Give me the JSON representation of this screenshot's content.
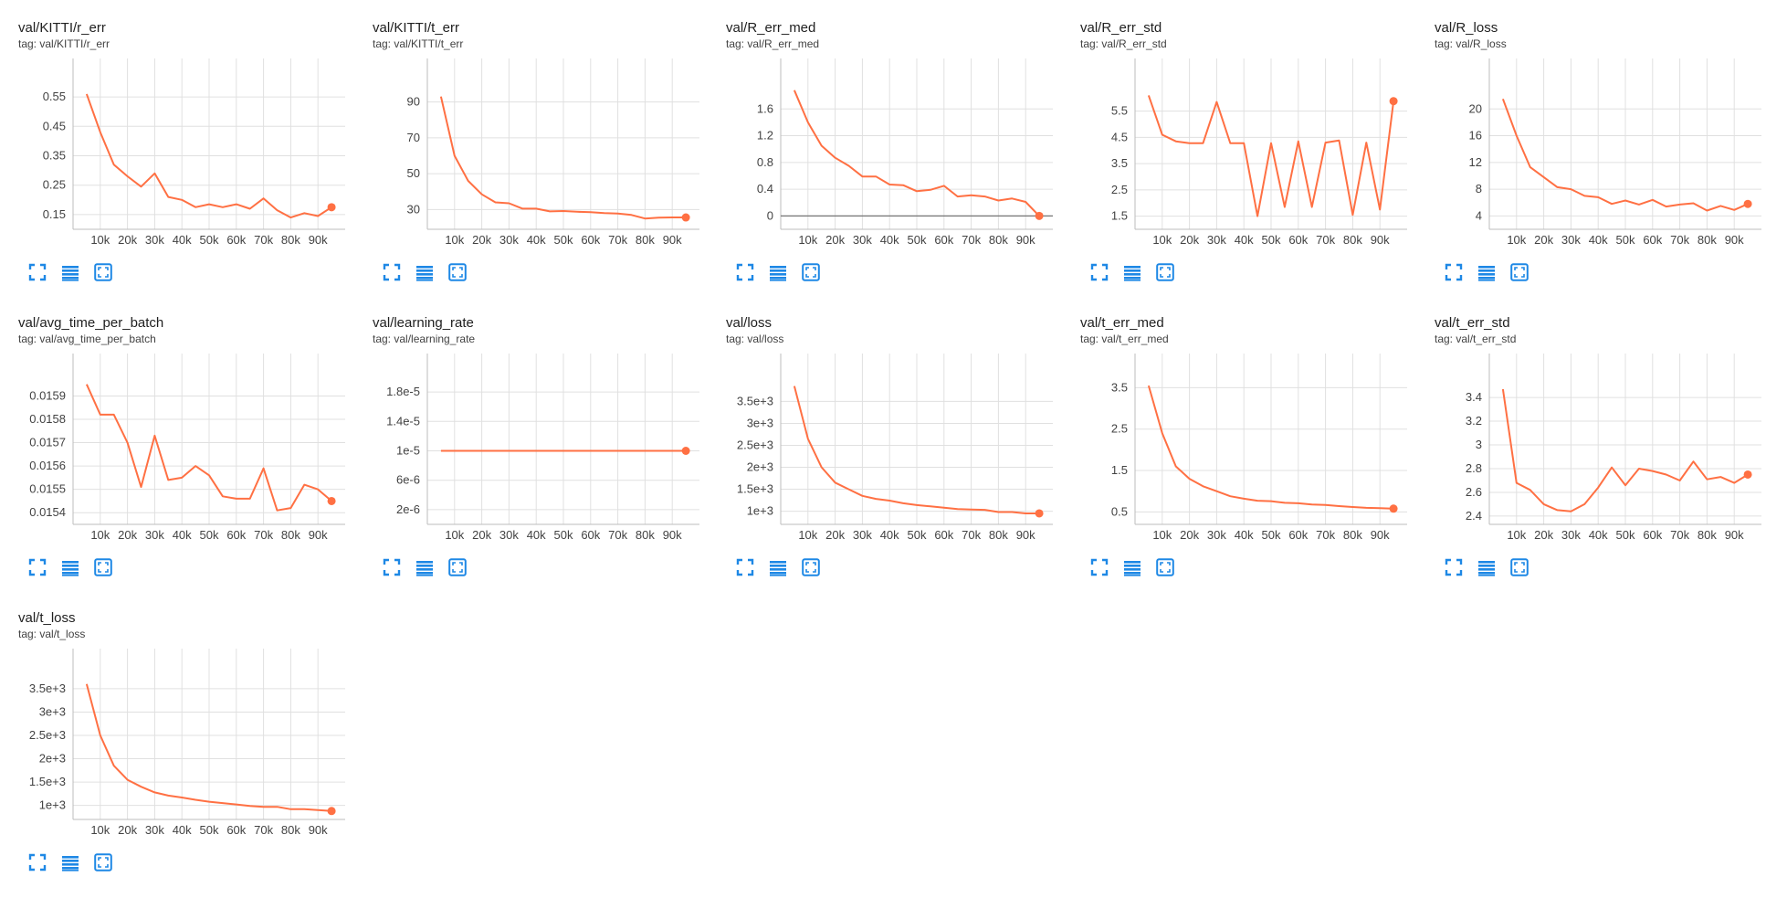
{
  "colors": {
    "line": "#ff7043",
    "grid": "#e0e0e0",
    "axis": "#bdbdbd",
    "zero_line": "#757575",
    "icon": "#1e88e5"
  },
  "toolbar_icons": [
    "fullscreen-icon",
    "toggle-log-scale-icon",
    "fit-domain-icon"
  ],
  "chart_data": [
    {
      "type": "line",
      "title": "val/KITTI/r_err",
      "tag": "tag: val/KITTI/r_err",
      "x": [
        5000,
        10000,
        15000,
        20000,
        25000,
        30000,
        35000,
        40000,
        45000,
        50000,
        55000,
        60000,
        65000,
        70000,
        75000,
        80000,
        85000,
        90000,
        95000
      ],
      "y": [
        0.56,
        0.43,
        0.32,
        0.28,
        0.245,
        0.29,
        0.21,
        0.2,
        0.175,
        0.185,
        0.175,
        0.185,
        0.17,
        0.205,
        0.165,
        0.14,
        0.155,
        0.145,
        0.175
      ],
      "xticks": [
        "10k",
        "20k",
        "30k",
        "40k",
        "50k",
        "60k",
        "70k",
        "80k",
        "90k"
      ],
      "xtick_values": [
        10000,
        20000,
        30000,
        40000,
        50000,
        60000,
        70000,
        80000,
        90000
      ],
      "yticks": [
        "0.15",
        "0.25",
        "0.35",
        "0.45",
        "0.55"
      ],
      "ytick_values": [
        0.15,
        0.25,
        0.35,
        0.45,
        0.55
      ],
      "xlim": [
        0,
        100000
      ],
      "ylim": [
        0.1,
        0.6
      ],
      "grid": true,
      "zero_line": false
    },
    {
      "type": "line",
      "title": "val/KITTI/t_err",
      "tag": "tag: val/KITTI/t_err",
      "x": [
        5000,
        10000,
        15000,
        20000,
        25000,
        30000,
        35000,
        40000,
        45000,
        50000,
        55000,
        60000,
        65000,
        70000,
        75000,
        80000,
        85000,
        90000,
        95000
      ],
      "y": [
        93,
        60,
        46,
        38.5,
        34,
        33.5,
        30.5,
        30.5,
        29,
        29.2,
        28.8,
        28.5,
        28,
        27.8,
        27,
        25,
        25.5,
        25.6,
        25.6
      ],
      "xticks": [
        "10k",
        "20k",
        "30k",
        "40k",
        "50k",
        "60k",
        "70k",
        "80k",
        "90k"
      ],
      "xtick_values": [
        10000,
        20000,
        30000,
        40000,
        50000,
        60000,
        70000,
        80000,
        90000
      ],
      "yticks": [
        "30",
        "50",
        "70",
        "90"
      ],
      "ytick_values": [
        30,
        50,
        70,
        90
      ],
      "xlim": [
        0,
        100000
      ],
      "ylim": [
        19,
        101
      ],
      "grid": true,
      "zero_line": false
    },
    {
      "type": "line",
      "title": "val/R_err_med",
      "tag": "tag: val/R_err_med",
      "x": [
        5000,
        10000,
        15000,
        20000,
        25000,
        30000,
        35000,
        40000,
        45000,
        50000,
        55000,
        60000,
        65000,
        70000,
        75000,
        80000,
        85000,
        90000,
        95000
      ],
      "y": [
        1.88,
        1.4,
        1.05,
        0.87,
        0.75,
        0.59,
        0.59,
        0.47,
        0.46,
        0.37,
        0.39,
        0.45,
        0.29,
        0.31,
        0.29,
        0.23,
        0.26,
        0.21,
        0.0
      ],
      "xticks": [
        "10k",
        "20k",
        "30k",
        "40k",
        "50k",
        "60k",
        "70k",
        "80k",
        "90k"
      ],
      "xtick_values": [
        10000,
        20000,
        30000,
        40000,
        50000,
        60000,
        70000,
        80000,
        90000
      ],
      "yticks": [
        "0",
        "0.4",
        "0.8",
        "1.2",
        "1.6"
      ],
      "ytick_values": [
        0,
        0.4,
        0.8,
        1.2,
        1.6
      ],
      "xlim": [
        0,
        100000
      ],
      "ylim": [
        -0.2,
        2.0
      ],
      "grid": true,
      "zero_line": true
    },
    {
      "type": "line",
      "title": "val/R_err_std",
      "tag": "tag: val/R_err_std",
      "x": [
        5000,
        10000,
        15000,
        20000,
        25000,
        30000,
        35000,
        40000,
        45000,
        50000,
        55000,
        60000,
        65000,
        70000,
        75000,
        80000,
        85000,
        90000,
        95000
      ],
      "y": [
        6.1,
        4.6,
        4.35,
        4.28,
        4.28,
        5.85,
        4.28,
        4.28,
        1.5,
        4.28,
        1.85,
        4.35,
        1.85,
        4.3,
        4.38,
        1.55,
        4.3,
        1.75,
        5.88
      ],
      "xticks": [
        "10k",
        "20k",
        "30k",
        "40k",
        "50k",
        "60k",
        "70k",
        "80k",
        "90k"
      ],
      "xtick_values": [
        10000,
        20000,
        30000,
        40000,
        50000,
        60000,
        70000,
        80000,
        90000
      ],
      "yticks": [
        "1.5",
        "2.5",
        "3.5",
        "4.5",
        "5.5"
      ],
      "ytick_values": [
        1.5,
        2.5,
        3.5,
        4.5,
        5.5
      ],
      "xlim": [
        0,
        100000
      ],
      "ylim": [
        1.0,
        6.6
      ],
      "grid": true,
      "zero_line": false
    },
    {
      "type": "line",
      "title": "val/R_loss",
      "tag": "tag: val/R_loss",
      "x": [
        5000,
        10000,
        15000,
        20000,
        25000,
        30000,
        35000,
        40000,
        45000,
        50000,
        55000,
        60000,
        65000,
        70000,
        75000,
        80000,
        85000,
        90000,
        95000
      ],
      "y": [
        21.5,
        16,
        11.3,
        9.8,
        8.3,
        8,
        7,
        6.8,
        5.8,
        6.3,
        5.7,
        6.4,
        5.4,
        5.7,
        5.9,
        4.8,
        5.5,
        4.9,
        5.8
      ],
      "xticks": [
        "10k",
        "20k",
        "30k",
        "40k",
        "50k",
        "60k",
        "70k",
        "80k",
        "90k"
      ],
      "xtick_values": [
        10000,
        20000,
        30000,
        40000,
        50000,
        60000,
        70000,
        80000,
        90000
      ],
      "yticks": [
        "4",
        "8",
        "12",
        "16",
        "20"
      ],
      "ytick_values": [
        4,
        8,
        12,
        16,
        20
      ],
      "xlim": [
        0,
        100000
      ],
      "ylim": [
        2,
        24
      ],
      "grid": true,
      "zero_line": false
    },
    {
      "type": "line",
      "title": "val/avg_time_per_batch",
      "tag": "tag: val/avg_time_per_batch",
      "x": [
        5000,
        10000,
        15000,
        20000,
        25000,
        30000,
        35000,
        40000,
        45000,
        50000,
        55000,
        60000,
        65000,
        70000,
        75000,
        80000,
        85000,
        90000,
        95000
      ],
      "y": [
        0.01595,
        0.01582,
        0.01582,
        0.0157,
        0.01551,
        0.01573,
        0.01554,
        0.01555,
        0.0156,
        0.01556,
        0.01547,
        0.01546,
        0.01546,
        0.01559,
        0.01541,
        0.01542,
        0.01552,
        0.0155,
        0.01545
      ],
      "xticks": [
        "10k",
        "20k",
        "30k",
        "40k",
        "50k",
        "60k",
        "70k",
        "80k",
        "90k"
      ],
      "xtick_values": [
        10000,
        20000,
        30000,
        40000,
        50000,
        60000,
        70000,
        80000,
        90000
      ],
      "yticks": [
        "0.0154",
        "0.0155",
        "0.0156",
        "0.0157",
        "0.0158",
        "0.0159"
      ],
      "ytick_values": [
        0.0154,
        0.0155,
        0.0156,
        0.0157,
        0.0158,
        0.0159
      ],
      "xlim": [
        0,
        100000
      ],
      "ylim": [
        0.01535,
        0.01598
      ],
      "grid": true,
      "zero_line": false
    },
    {
      "type": "line",
      "title": "val/learning_rate",
      "tag": "tag: val/learning_rate",
      "x": [
        5000,
        95000
      ],
      "y": [
        1e-05,
        1e-05
      ],
      "xticks": [
        "10k",
        "20k",
        "30k",
        "40k",
        "50k",
        "60k",
        "70k",
        "80k",
        "90k"
      ],
      "xtick_values": [
        10000,
        20000,
        30000,
        40000,
        50000,
        60000,
        70000,
        80000,
        90000
      ],
      "yticks": [
        "2e-6",
        "6e-6",
        "1e-5",
        "1.4e-5",
        "1.8e-5"
      ],
      "ytick_values": [
        2e-06,
        6e-06,
        1e-05,
        1.4e-05,
        1.8e-05
      ],
      "xlim": [
        0,
        100000
      ],
      "ylim": [
        0,
        2e-05
      ],
      "grid": true,
      "zero_line": false
    },
    {
      "type": "line",
      "title": "val/loss",
      "tag": "tag: val/loss",
      "x": [
        5000,
        10000,
        15000,
        20000,
        25000,
        30000,
        35000,
        40000,
        45000,
        50000,
        55000,
        60000,
        65000,
        70000,
        75000,
        80000,
        85000,
        90000,
        95000
      ],
      "y": [
        3850,
        2650,
        2000,
        1650,
        1500,
        1350,
        1280,
        1240,
        1180,
        1140,
        1110,
        1080,
        1050,
        1040,
        1030,
        980,
        980,
        950,
        950
      ],
      "xticks": [
        "10k",
        "20k",
        "30k",
        "40k",
        "50k",
        "60k",
        "70k",
        "80k",
        "90k"
      ],
      "xtick_values": [
        10000,
        20000,
        30000,
        40000,
        50000,
        60000,
        70000,
        80000,
        90000
      ],
      "yticks": [
        "1e+3",
        "1.5e+3",
        "2e+3",
        "2.5e+3",
        "3e+3",
        "3.5e+3"
      ],
      "ytick_values": [
        1000,
        1500,
        2000,
        2500,
        3000,
        3500
      ],
      "xlim": [
        0,
        100000
      ],
      "ylim": [
        700,
        4050
      ],
      "grid": true,
      "zero_line": false
    },
    {
      "type": "line",
      "title": "val/t_err_med",
      "tag": "tag: val/t_err_med",
      "x": [
        5000,
        10000,
        15000,
        20000,
        25000,
        30000,
        35000,
        40000,
        45000,
        50000,
        55000,
        60000,
        65000,
        70000,
        75000,
        80000,
        85000,
        90000,
        95000
      ],
      "y": [
        3.55,
        2.4,
        1.6,
        1.3,
        1.12,
        1.0,
        0.88,
        0.82,
        0.77,
        0.76,
        0.72,
        0.71,
        0.68,
        0.67,
        0.64,
        0.62,
        0.6,
        0.59,
        0.58
      ],
      "xticks": [
        "10k",
        "20k",
        "30k",
        "40k",
        "50k",
        "60k",
        "70k",
        "80k",
        "90k"
      ],
      "xtick_values": [
        10000,
        20000,
        30000,
        40000,
        50000,
        60000,
        70000,
        80000,
        90000
      ],
      "yticks": [
        "0.5",
        "1.5",
        "2.5",
        "3.5"
      ],
      "ytick_values": [
        0.5,
        1.5,
        2.5,
        3.5
      ],
      "xlim": [
        0,
        100000
      ],
      "ylim": [
        0.2,
        3.75
      ],
      "grid": true,
      "zero_line": false
    },
    {
      "type": "line",
      "title": "val/t_err_std",
      "tag": "tag: val/t_err_std",
      "x": [
        5000,
        10000,
        15000,
        20000,
        25000,
        30000,
        35000,
        40000,
        45000,
        50000,
        55000,
        60000,
        65000,
        70000,
        75000,
        80000,
        85000,
        90000,
        95000
      ],
      "y": [
        3.47,
        2.68,
        2.62,
        2.5,
        2.45,
        2.44,
        2.5,
        2.64,
        2.81,
        2.66,
        2.8,
        2.78,
        2.75,
        2.7,
        2.86,
        2.71,
        2.73,
        2.68,
        2.75
      ],
      "xticks": [
        "10k",
        "20k",
        "30k",
        "40k",
        "50k",
        "60k",
        "70k",
        "80k",
        "90k"
      ],
      "xtick_values": [
        10000,
        20000,
        30000,
        40000,
        50000,
        60000,
        70000,
        80000,
        90000
      ],
      "yticks": [
        "2.4",
        "2.6",
        "2.8",
        "3",
        "3.2",
        "3.4"
      ],
      "ytick_values": [
        2.4,
        2.6,
        2.8,
        3.0,
        3.2,
        3.4
      ],
      "xlim": [
        0,
        100000
      ],
      "ylim": [
        2.33,
        3.57
      ],
      "grid": true,
      "zero_line": false
    },
    {
      "type": "line",
      "title": "val/t_loss",
      "tag": "tag: val/t_loss",
      "x": [
        5000,
        10000,
        15000,
        20000,
        25000,
        30000,
        35000,
        40000,
        45000,
        50000,
        55000,
        60000,
        65000,
        70000,
        75000,
        80000,
        85000,
        90000,
        95000
      ],
      "y": [
        3600,
        2500,
        1850,
        1550,
        1400,
        1280,
        1210,
        1170,
        1120,
        1080,
        1050,
        1020,
        990,
        970,
        970,
        920,
        920,
        900,
        880
      ],
      "xticks": [
        "10k",
        "20k",
        "30k",
        "40k",
        "50k",
        "60k",
        "70k",
        "80k",
        "90k"
      ],
      "xtick_values": [
        10000,
        20000,
        30000,
        40000,
        50000,
        60000,
        70000,
        80000,
        90000
      ],
      "yticks": [
        "1e+3",
        "1.5e+3",
        "2e+3",
        "2.5e+3",
        "3e+3",
        "3.5e+3"
      ],
      "ytick_values": [
        1000,
        1500,
        2000,
        2500,
        3000,
        3500
      ],
      "xlim": [
        0,
        100000
      ],
      "ylim": [
        700,
        3850
      ],
      "grid": true,
      "zero_line": false
    }
  ]
}
